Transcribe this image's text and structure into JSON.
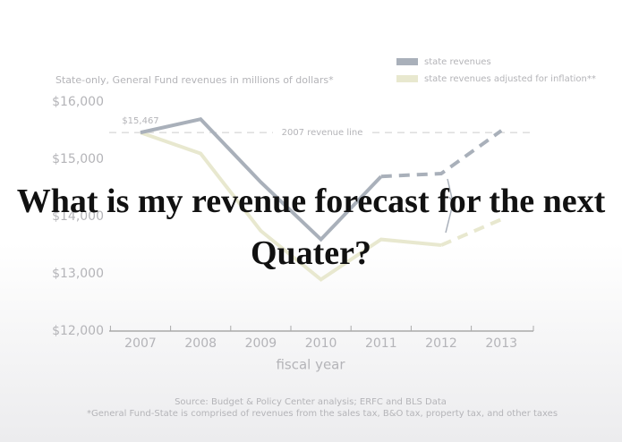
{
  "chart_data": {
    "type": "line",
    "subtitle": "State-only, General Fund revenues in millions of dollars*",
    "categories": [
      "2007",
      "2008",
      "2009",
      "2010",
      "2011",
      "2012",
      "2013"
    ],
    "series": [
      {
        "name": "state revenues",
        "color": "#a9b0ba",
        "values": [
          15467,
          15700,
          14600,
          13600,
          14700,
          14750,
          15500
        ],
        "value_labels": [
          "$15,467",
          null,
          null,
          null,
          null,
          null,
          null
        ],
        "dash_from": 4
      },
      {
        "name": "state revenues adjusted for inflation**",
        "color": "#e8e8cf",
        "values": [
          15467,
          15100,
          13750,
          12900,
          13600,
          13500,
          13950
        ],
        "dash_from": 5
      }
    ],
    "ylim": [
      12000,
      16000
    ],
    "yticks": [
      {
        "value": 12000,
        "label": "$12,000"
      },
      {
        "value": 13000,
        "label": "$13,000"
      },
      {
        "value": 14000,
        "label": "$14,000"
      },
      {
        "value": 15000,
        "label": "$15,000"
      },
      {
        "value": 16000,
        "label": "$16,000"
      }
    ],
    "reference_line": {
      "value": 15467,
      "label": "2007 revenue line"
    },
    "xlabel": "fiscal year",
    "source": "Source: Budget & Policy Center analysis; ERFC and BLS Data",
    "footnote": "*General Fund-State is comprised of revenues from the sales tax, B&O tax, property tax, and other taxes",
    "overlay_text": "What is my revenue forecast for the next Quater?"
  }
}
